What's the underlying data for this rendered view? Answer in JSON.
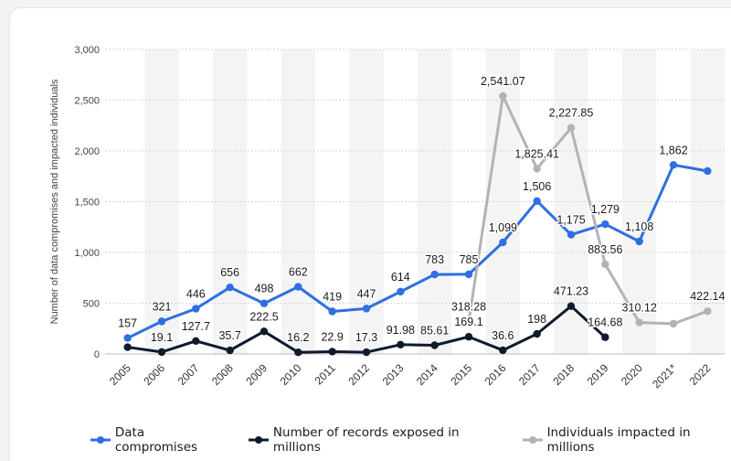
{
  "chart_data": {
    "type": "line",
    "ylabel": "Number of data compromises and impacted individuals",
    "xlabel": "",
    "ylim": [
      0,
      3000
    ],
    "yticks": [
      0,
      500,
      1000,
      1500,
      2000,
      2500,
      3000
    ],
    "ytick_labels": [
      "0",
      "500",
      "1,000",
      "1,500",
      "2,000",
      "2,500",
      "3,000"
    ],
    "categories": [
      "2005",
      "2006",
      "2007",
      "2008",
      "2009",
      "2010",
      "2011",
      "2012",
      "2013",
      "2014",
      "2015",
      "2016",
      "2017",
      "2018",
      "2019",
      "2020",
      "2021*",
      "2022"
    ],
    "grid": "horizontal dashed",
    "legend_position": "bottom",
    "series": [
      {
        "name": "Data compromises",
        "color": "#2f6fe0",
        "values": [
          157,
          321,
          446,
          656,
          498,
          662,
          419,
          447,
          614,
          783,
          785,
          1099,
          1506,
          1175,
          1279,
          1108,
          1862,
          1802
        ],
        "labels": [
          "157",
          "321",
          "446",
          "656",
          "498",
          "662",
          "419",
          "447",
          "614",
          "783",
          "785",
          "1,099",
          "1,506",
          "1,175",
          "1,279",
          "1,108",
          "1,862",
          null
        ]
      },
      {
        "name": "Number of records exposed in millions",
        "color": "#0f1a2e",
        "values": [
          66.9,
          19.1,
          127.7,
          35.7,
          222.5,
          16.2,
          22.9,
          17.3,
          91.98,
          85.61,
          169.1,
          36.6,
          198,
          471.23,
          164.68,
          null,
          null,
          null
        ],
        "labels": [
          null,
          "19.1",
          "127.7",
          "35.7",
          "222.5",
          "16.2",
          "22.9",
          "17.3",
          "91.98",
          "85.61",
          "169.1",
          "36.6",
          "198",
          "471.23",
          "164.68",
          null,
          null,
          null
        ]
      },
      {
        "name": "Individuals impacted in millions",
        "color": "#b3b3b3",
        "values": [
          null,
          null,
          null,
          null,
          null,
          null,
          null,
          null,
          null,
          null,
          318.28,
          2541.07,
          1825.41,
          2227.85,
          883.56,
          310.12,
          298,
          422.14
        ],
        "labels": [
          null,
          null,
          null,
          null,
          null,
          null,
          null,
          null,
          null,
          null,
          "318.28",
          "2,541.07",
          "1,825.41",
          "2,227.85",
          "883.56",
          "310.12",
          null,
          "422.14"
        ]
      }
    ]
  },
  "legend": {
    "items": [
      {
        "label": "Data compromises",
        "color": "#2f6fe0"
      },
      {
        "label": "Number of records exposed in millions",
        "color": "#0f1a2e"
      },
      {
        "label": "Individuals impacted in millions",
        "color": "#b3b3b3"
      }
    ]
  }
}
